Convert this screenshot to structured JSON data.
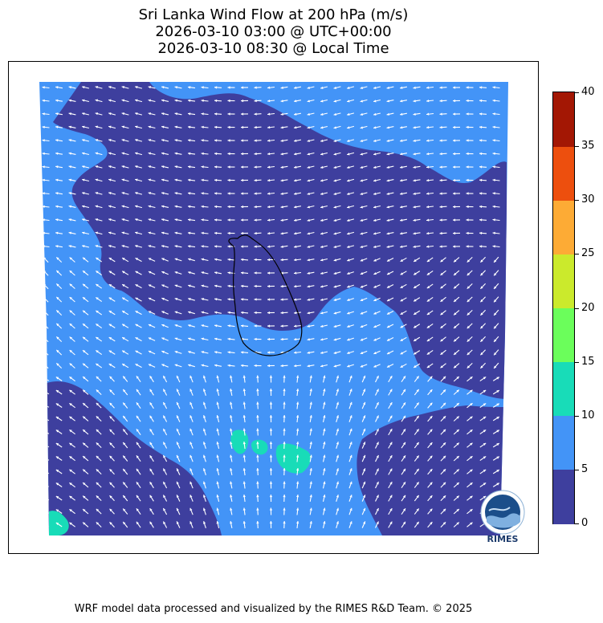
{
  "title": {
    "line1": "Sri Lanka Wind Flow at 200 hPa (m/s)",
    "line2": "2026-03-10 03:00 @ UTC+00:00",
    "line3": "2026-03-10 08:30 @ Local Time"
  },
  "colorbar": {
    "ticks": [
      "0",
      "5",
      "10",
      "15",
      "20",
      "25",
      "30",
      "35",
      "40"
    ],
    "range": [
      0,
      40
    ],
    "segments": [
      {
        "from": 0,
        "to": 5,
        "color": "#3e3f9e"
      },
      {
        "from": 5,
        "to": 10,
        "color": "#4394f7"
      },
      {
        "from": 10,
        "to": 15,
        "color": "#18dcb8"
      },
      {
        "from": 15,
        "to": 20,
        "color": "#6bfe5b"
      },
      {
        "from": 20,
        "to": 25,
        "color": "#cbea2c"
      },
      {
        "from": 25,
        "to": 30,
        "color": "#fdab35"
      },
      {
        "from": 30,
        "to": 35,
        "color": "#ed4f0e"
      },
      {
        "from": 35,
        "to": 40,
        "color": "#a31704"
      }
    ]
  },
  "map": {
    "field_colors": {
      "low": "#3e3f9e",
      "mid": "#4394f7",
      "high": "#18dcb8"
    },
    "arrow_color": "#ffffff",
    "coastline_color": "#000000"
  },
  "logo": {
    "text": "RIMES"
  },
  "footer": "WRF model data processed and visualized by the RIMES R&D Team. © 2025"
}
